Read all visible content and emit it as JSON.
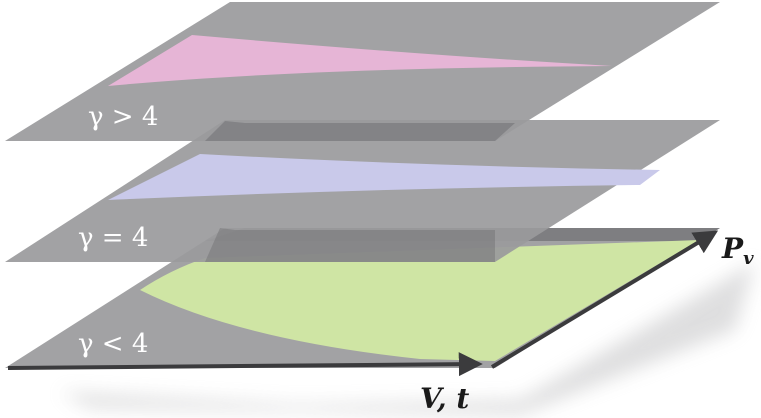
{
  "diagram": {
    "planes": [
      {
        "id": "top",
        "label": "γ  > 4",
        "region_color": "#e6b5d6"
      },
      {
        "id": "middle",
        "label": "γ = 4",
        "region_color": "#c9c9ea"
      },
      {
        "id": "bottom",
        "label": "γ < 4",
        "region_color": "#cfe5a4"
      }
    ],
    "axes": {
      "x_label": "V, t",
      "y_label": "P",
      "y_label_subscript": "v"
    },
    "colors": {
      "plane": "#9a9a9c",
      "plane_shadow": "#6f6f72",
      "axis": "#3b3b3d"
    }
  }
}
